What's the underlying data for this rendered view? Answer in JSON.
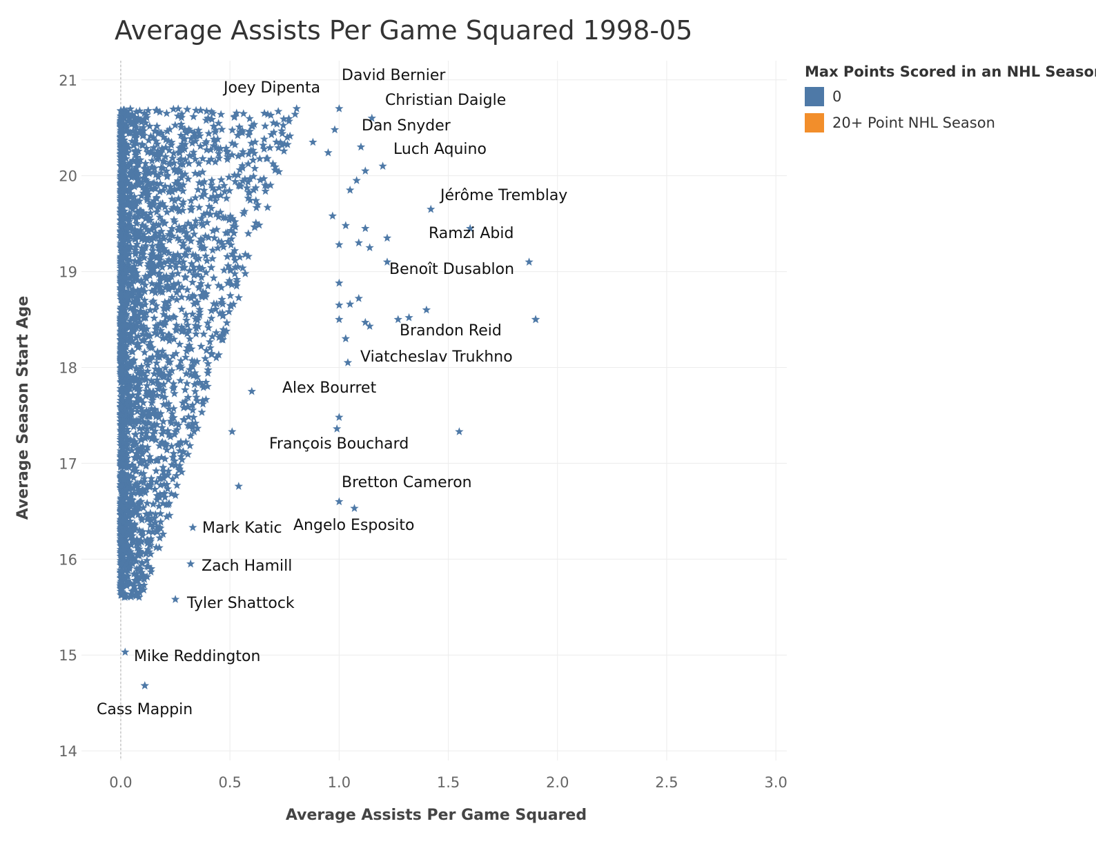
{
  "chart_data": {
    "type": "scatter",
    "title": "Average Assists Per Game Squared 1998-05",
    "xlabel": "Average Assists Per Game Squared",
    "ylabel": "Average Season Start Age",
    "xlim": [
      -0.18,
      3.05
    ],
    "ylim": [
      13.9,
      21.2
    ],
    "x_ticks": [
      "0.0",
      "0.5",
      "1.0",
      "1.5",
      "2.0",
      "2.5",
      "3.0"
    ],
    "y_ticks": [
      "14",
      "15",
      "16",
      "17",
      "18",
      "19",
      "20",
      "21"
    ],
    "grid": true,
    "marker": "star",
    "legend": {
      "title": "Max Points Scored in an NHL Season",
      "placement": "right",
      "items": [
        {
          "label": "0",
          "color": "#4e79a7"
        },
        {
          "label": "20+ Point NHL Season",
          "color": "#f28e2b"
        }
      ]
    },
    "labeled_points": [
      {
        "name": "David Bernier",
        "x": 1.0,
        "y": 20.7
      },
      {
        "name": "Joey Dipenta",
        "x": 0.4,
        "y": 20.6
      },
      {
        "name": "Christian Daigle",
        "x": 1.15,
        "y": 20.6
      },
      {
        "name": "Dan Snyder",
        "x": 1.1,
        "y": 20.3
      },
      {
        "name": "Luch Aquino",
        "x": 1.2,
        "y": 20.1
      },
      {
        "name": "Jérôme Tremblay",
        "x": 1.42,
        "y": 19.65
      },
      {
        "name": "Ramzi Abid",
        "x": 1.87,
        "y": 19.1
      },
      {
        "name": "Benoît Dusablon",
        "x": 1.4,
        "y": 18.6
      },
      {
        "name": "Brandon Reid",
        "x": 1.9,
        "y": 18.5
      },
      {
        "name": "Viatcheslav Trukhno",
        "x": 1.04,
        "y": 18.05
      },
      {
        "name": "Alex Bourret",
        "x": 1.0,
        "y": 17.48
      },
      {
        "name": "François Bouchard",
        "x": 1.55,
        "y": 17.33
      },
      {
        "name": "Bretton Cameron",
        "x": 1.07,
        "y": 16.53
      },
      {
        "name": "Angelo Esposito",
        "x": 1.0,
        "y": 16.6
      },
      {
        "name": "Mark Katic",
        "x": 0.33,
        "y": 16.33
      },
      {
        "name": "Zach Hamill",
        "x": 0.32,
        "y": 15.95
      },
      {
        "name": "Tyler Shattock",
        "x": 0.25,
        "y": 15.58
      },
      {
        "name": "Mike Reddington",
        "x": 0.02,
        "y": 15.03
      },
      {
        "name": "Cass Mappin",
        "x": 0.11,
        "y": 14.68
      }
    ],
    "other_points": [
      {
        "x": 0.98,
        "y": 20.48
      },
      {
        "x": 0.95,
        "y": 20.24
      },
      {
        "x": 0.88,
        "y": 20.35
      },
      {
        "x": 1.12,
        "y": 20.05
      },
      {
        "x": 1.08,
        "y": 19.95
      },
      {
        "x": 1.05,
        "y": 19.85
      },
      {
        "x": 1.6,
        "y": 19.45
      },
      {
        "x": 1.22,
        "y": 19.35
      },
      {
        "x": 1.22,
        "y": 19.1
      },
      {
        "x": 1.12,
        "y": 19.45
      },
      {
        "x": 1.03,
        "y": 19.48
      },
      {
        "x": 0.97,
        "y": 19.58
      },
      {
        "x": 1.09,
        "y": 19.3
      },
      {
        "x": 1.14,
        "y": 19.25
      },
      {
        "x": 1.0,
        "y": 19.28
      },
      {
        "x": 1.9,
        "y": 18.5
      },
      {
        "x": 1.32,
        "y": 18.52
      },
      {
        "x": 1.27,
        "y": 18.5
      },
      {
        "x": 1.14,
        "y": 18.43
      },
      {
        "x": 1.12,
        "y": 18.47
      },
      {
        "x": 1.09,
        "y": 18.72
      },
      {
        "x": 1.05,
        "y": 18.66
      },
      {
        "x": 1.0,
        "y": 18.88
      },
      {
        "x": 1.0,
        "y": 18.65
      },
      {
        "x": 1.0,
        "y": 18.5
      },
      {
        "x": 1.03,
        "y": 18.3
      },
      {
        "x": 0.99,
        "y": 17.36
      },
      {
        "x": 0.54,
        "y": 16.76
      },
      {
        "x": 0.51,
        "y": 17.33
      },
      {
        "x": 0.6,
        "y": 17.75
      },
      {
        "x": 0.11,
        "y": 14.68
      }
    ]
  }
}
